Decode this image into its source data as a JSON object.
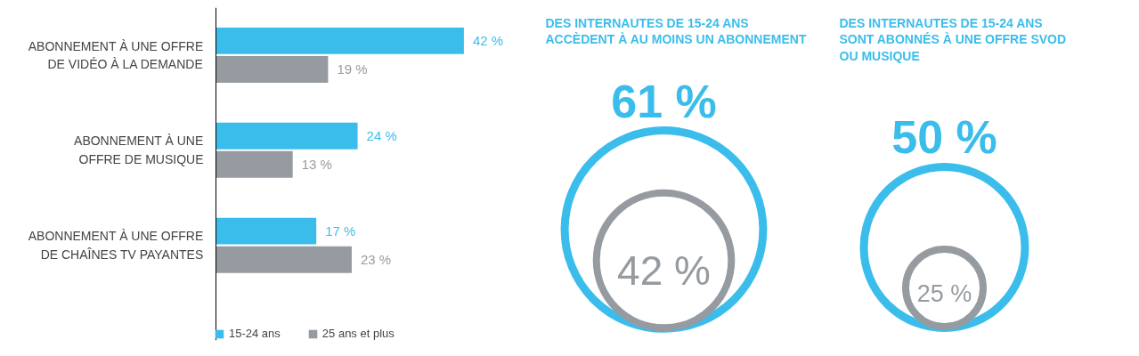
{
  "chart_data": [
    {
      "type": "bar",
      "orientation": "horizontal",
      "tick_labels": "y",
      "grid": false,
      "legend": "bottom left",
      "categories": [
        "ABONNEMENT À UNE OFFRE\nDE VIDÉO À LA DEMANDE",
        "ABONNEMENT À UNE\nOFFRE DE MUSIQUE",
        "ABONNEMENT À UNE OFFRE\nDE CHAÎNES TV PAYANTES"
      ],
      "series": [
        {
          "name": "15-24 ans",
          "color": "#3bbdec",
          "values": [
            42,
            24,
            17
          ],
          "value_labels": [
            "42 %",
            "24 %",
            "17 %"
          ]
        },
        {
          "name": "25 ans et plus",
          "color": "#959ba0",
          "values": [
            19,
            13,
            23
          ],
          "value_labels": [
            "19 %",
            "13 %",
            "23 %"
          ]
        }
      ]
    },
    {
      "type": "other",
      "title": "DES INTERNAUTES DE 15-24 ANS\nACCÈDENT À AU MOINS UN ABONNEMENT",
      "categories": [
        null,
        null
      ],
      "values": [
        61,
        42
      ],
      "value_labels": [
        "61 %",
        "42 %"
      ],
      "colors": [
        "#3bbdec",
        "#959ba0"
      ]
    },
    {
      "type": "other",
      "title": "DES INTERNAUTES DE 15-24 ANS\nSONT ABONNÉS À UNE OFFRE SVOD\nOU MUSIQUE",
      "categories": [
        null,
        null
      ],
      "values": [
        50,
        25
      ],
      "value_labels": [
        "50 %",
        "25 %"
      ],
      "colors": [
        "#3bbdec",
        "#959ba0"
      ]
    }
  ]
}
